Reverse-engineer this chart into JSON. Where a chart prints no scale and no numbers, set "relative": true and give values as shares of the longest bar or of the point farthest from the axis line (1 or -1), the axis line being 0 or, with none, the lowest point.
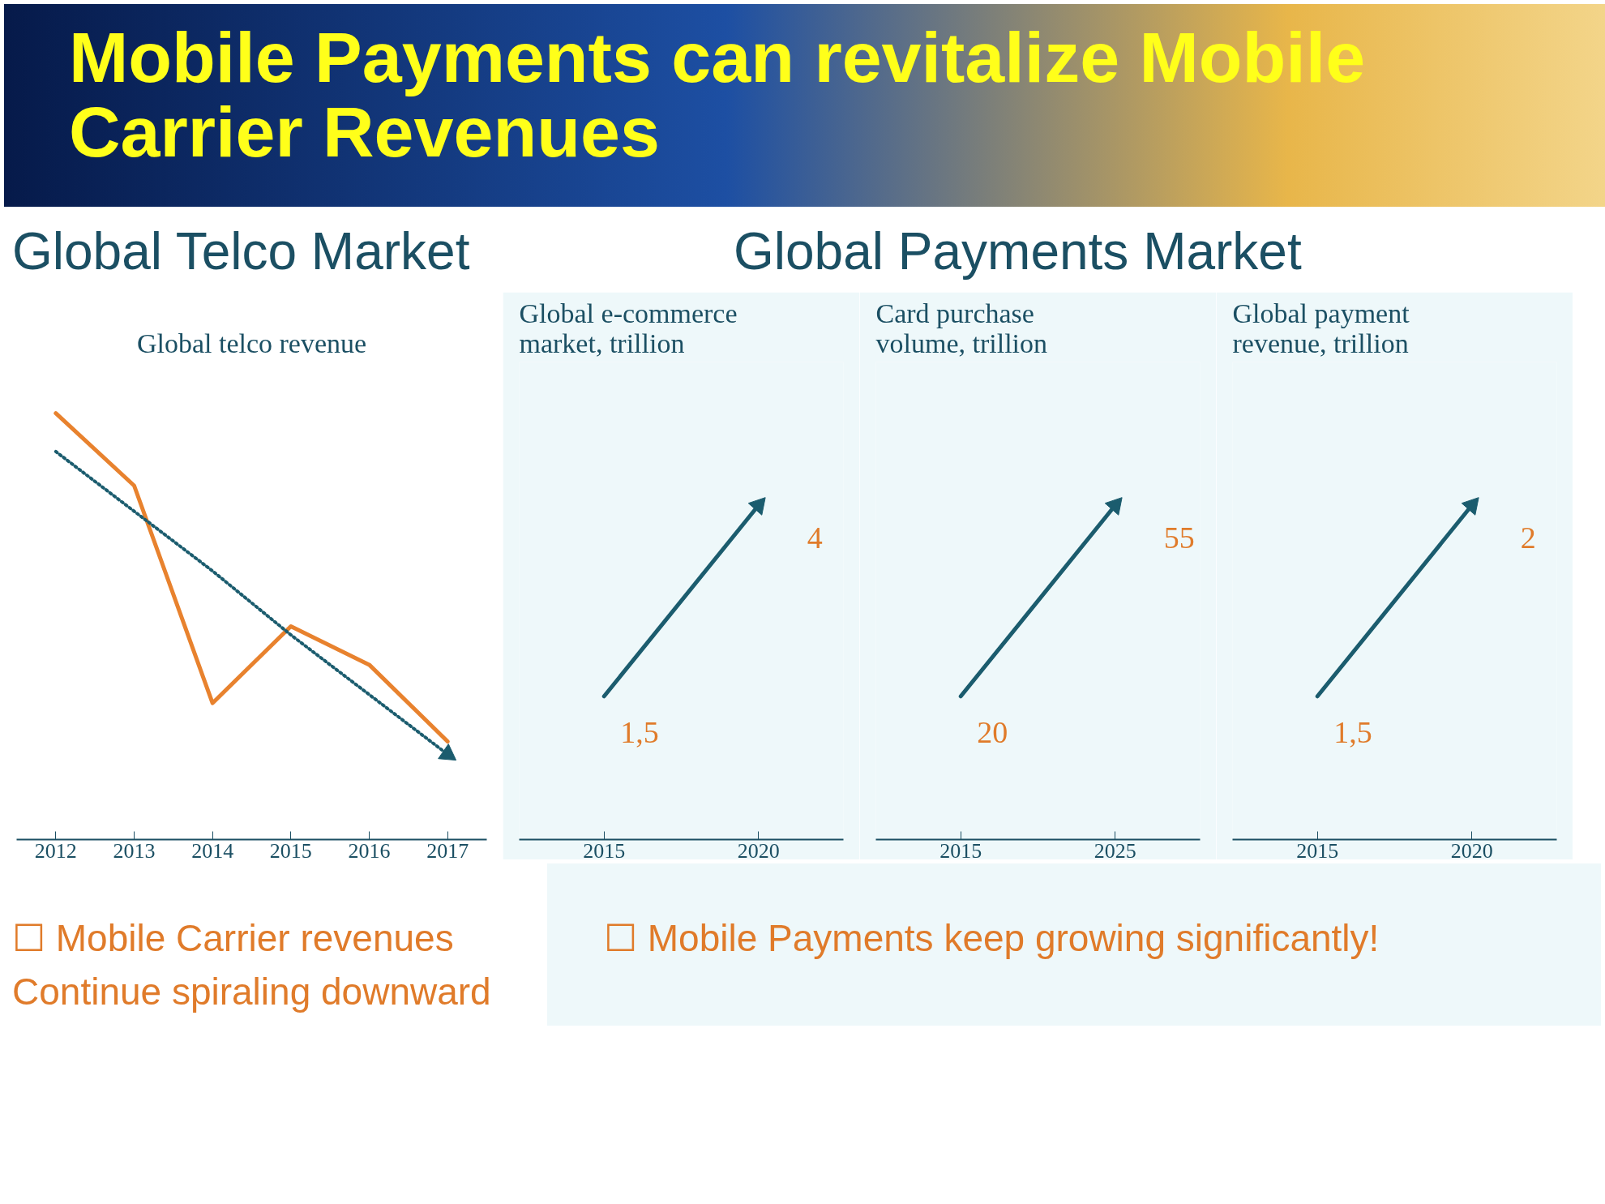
{
  "chart_data": [
    {
      "type": "line",
      "title": "Global telco revenue",
      "relative": true,
      "categories": [
        "2012",
        "2013",
        "2014",
        "2015",
        "2016",
        "2017"
      ],
      "series": [
        {
          "color": "#e8822e",
          "values": [
            1,
            0.83,
            0.32,
            0.5,
            0.41,
            0.23
          ]
        },
        {
          "color": "#1b5c6e",
          "values": [
            0.91,
            0.77,
            0.63,
            0.48,
            0.34,
            0.2
          ],
          "line_style": "dotted"
        }
      ],
      "grid": false,
      "annotations": [
        "Mobile Payments can revitalize Mobile Carrier Revenues",
        "Global Telco Market",
        "☐ Mobile Carrier revenues Continue spiraling downward"
      ]
    },
    {
      "type": "line",
      "title": "Global e-commerce market, trillion",
      "categories": [
        "2015",
        "2020"
      ],
      "series": [
        {
          "color": "#1b5c6e",
          "values": [
            1.5,
            4
          ],
          "value_labels": [
            "1,5",
            "4"
          ]
        }
      ],
      "grid": false,
      "annotations": [
        "Global Payments Market",
        "☐ Mobile Payments keep growing significantly!"
      ]
    },
    {
      "type": "line",
      "title": "Card purchase volume, trillion",
      "categories": [
        "2015",
        "2025"
      ],
      "series": [
        {
          "color": "#1b5c6e",
          "values": [
            20,
            55
          ],
          "value_labels": [
            "20",
            "55"
          ]
        }
      ],
      "grid": false
    },
    {
      "type": "line",
      "title": "Global payment revenue, trillion",
      "categories": [
        "2015",
        "2020"
      ],
      "series": [
        {
          "color": "#1b5c6e",
          "values": [
            1.5,
            2
          ],
          "value_labels": [
            "1,5",
            "2"
          ]
        }
      ],
      "grid": false
    }
  ]
}
